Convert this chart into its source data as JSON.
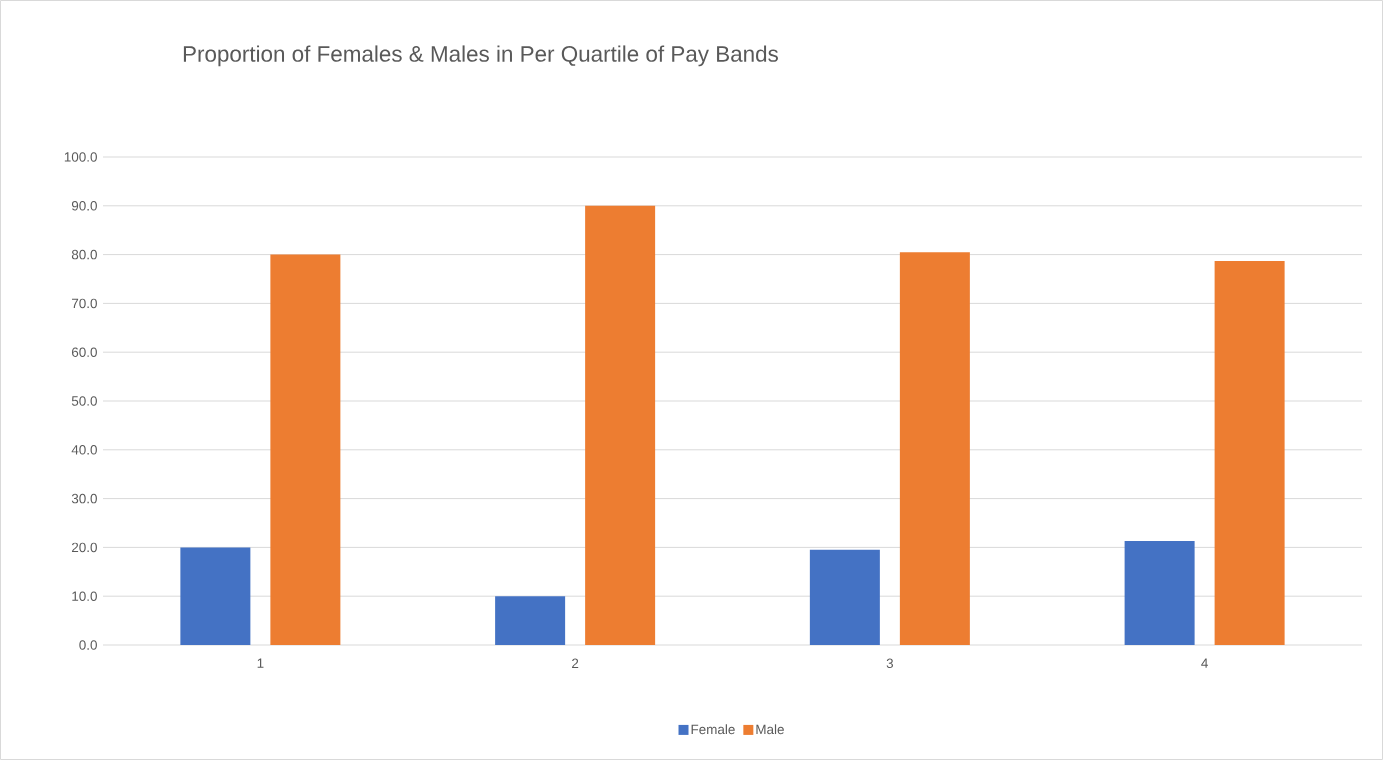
{
  "chart_data": {
    "type": "bar",
    "title": "Proportion of Females & Males in Per Quartile of Pay Bands",
    "categories": [
      "1",
      "2",
      "3",
      "4"
    ],
    "series": [
      {
        "name": "Female",
        "color": "#4472c4",
        "values": [
          20,
          10,
          19.5,
          21.3
        ]
      },
      {
        "name": "Male",
        "color": "#ed7d31",
        "values": [
          80,
          90,
          80.5,
          78.7
        ]
      }
    ],
    "ylim": [
      0,
      100
    ],
    "yticks": [
      {
        "value": 0,
        "label": "0.0"
      },
      {
        "value": 10,
        "label": "10.0"
      },
      {
        "value": 20,
        "label": "20.0"
      },
      {
        "value": 30,
        "label": "30.0"
      },
      {
        "value": 40,
        "label": "40.0"
      },
      {
        "value": 50,
        "label": "50.0"
      },
      {
        "value": 60,
        "label": "60.0"
      },
      {
        "value": 70,
        "label": "70.0"
      },
      {
        "value": 80,
        "label": "80.0"
      },
      {
        "value": 90,
        "label": "90.0"
      },
      {
        "value": 100,
        "label": "100.0"
      }
    ],
    "grid": "y",
    "legend": "bottom"
  }
}
